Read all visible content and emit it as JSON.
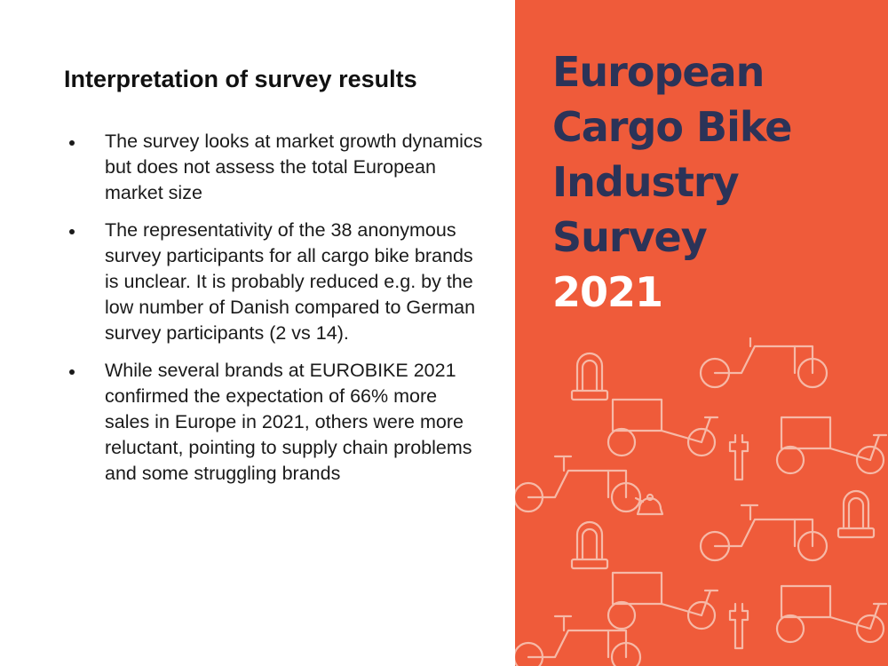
{
  "slide": {
    "heading": "Interpretation of survey results",
    "bullets": [
      "The survey looks at market growth dynamics but does not assess the total European market size",
      "The representativity of the 38 anonymous survey participants for all cargo bike brands is unclear. It is probably reduced e.g. by the low number of Danish compared to German survey participants (2 vs 14).",
      "While several brands at EUROBIKE 2021 confirmed the expectation of 66% more sales in Europe in 2021, others were more reluctant, pointing to supply chain problems and some struggling brands"
    ]
  },
  "cover": {
    "title_lines": [
      "European",
      "Cargo Bike",
      "Industry",
      "Survey"
    ],
    "year": "2021",
    "pattern_icons": [
      "cargo-bike-icon",
      "bike-lock-icon",
      "wrench-icon",
      "bell-icon"
    ]
  },
  "colors": {
    "panel_orange": "#ef5b3a",
    "title_navy": "#2b3358",
    "year_white": "#ffffff"
  }
}
